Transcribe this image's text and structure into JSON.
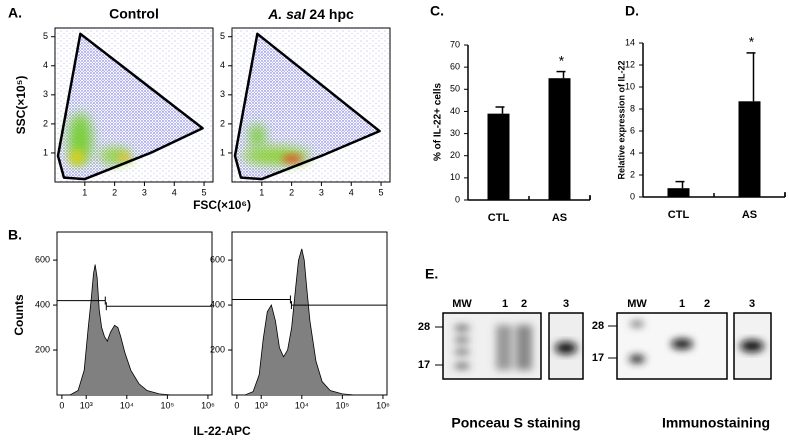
{
  "chart_data": [
    {
      "type": "scatter",
      "panel": "A.",
      "title": "Control",
      "xlabel": "FSC(×10⁶)",
      "ylabel": "SSC(×10⁵)",
      "xlim": [
        0,
        5.3
      ],
      "ylim": [
        0,
        5.3
      ],
      "xticks": [
        1,
        2,
        3,
        4,
        5
      ],
      "yticks": [
        1,
        2,
        3,
        4,
        5
      ],
      "gate": {
        "x": [
          0.85,
          4.95,
          3.2,
          1.0,
          0.3,
          0.1
        ],
        "y": [
          5.1,
          1.85,
          1.0,
          0.1,
          0.15,
          0.9
        ]
      },
      "gate_color": "#000000"
    },
    {
      "type": "scatter",
      "title": "A. sal 24 hpc",
      "xlim": [
        0,
        5.3
      ],
      "ylim": [
        0,
        5.3
      ],
      "xticks": [
        1,
        2,
        3,
        4,
        5
      ],
      "yticks": [
        1,
        2,
        3,
        4,
        5
      ],
      "gate": {
        "x": [
          0.85,
          4.95,
          3.0,
          1.0,
          0.3,
          0.1
        ],
        "y": [
          5.1,
          1.75,
          0.9,
          0.1,
          0.15,
          0.9
        ]
      },
      "gate_color": "#000000"
    },
    {
      "type": "area",
      "panel": "B.",
      "xlabel": "IL-22-APC",
      "ylabel": "Counts",
      "xlim": [
        2.28,
        6.1
      ],
      "ylim": [
        0,
        725
      ],
      "xticks": [
        {
          "value": 2.4,
          "label": "0"
        },
        {
          "value": 3,
          "label": "10³"
        },
        {
          "value": 4,
          "label": "10⁴"
        },
        {
          "value": 5,
          "label": "10⁵"
        },
        {
          "value": 6,
          "label": "10⁶"
        }
      ],
      "yticks": [
        200,
        400,
        600
      ],
      "x": [
        2.6,
        2.8,
        2.95,
        3.05,
        3.12,
        3.18,
        3.22,
        3.27,
        3.32,
        3.38,
        3.45,
        3.52,
        3.6,
        3.7,
        3.78,
        3.85,
        3.95,
        4.1,
        4.3,
        4.5,
        4.8,
        5.1
      ],
      "values": [
        0,
        20,
        110,
        300,
        420,
        540,
        580,
        520,
        380,
        300,
        260,
        240,
        280,
        310,
        300,
        260,
        190,
        110,
        50,
        20,
        5,
        0
      ],
      "color": "#808080",
      "marker_x": 3.47,
      "marker_levels": [
        420,
        395
      ]
    },
    {
      "type": "area",
      "xlim": [
        2.28,
        6.1
      ],
      "ylim": [
        0,
        725
      ],
      "xticks": [
        {
          "value": 2.4,
          "label": "0"
        },
        {
          "value": 3,
          "label": "10³"
        },
        {
          "value": 4,
          "label": "10⁴"
        },
        {
          "value": 5,
          "label": "10⁵"
        },
        {
          "value": 6,
          "label": "10⁶"
        }
      ],
      "yticks": [
        200,
        400,
        600
      ],
      "x": [
        2.6,
        2.8,
        2.95,
        3.05,
        3.15,
        3.25,
        3.35,
        3.45,
        3.55,
        3.65,
        3.75,
        3.85,
        3.92,
        4.0,
        4.06,
        4.12,
        4.2,
        4.35,
        4.5,
        4.7,
        5.0,
        5.3
      ],
      "values": [
        0,
        15,
        90,
        250,
        370,
        400,
        330,
        210,
        170,
        200,
        300,
        480,
        600,
        650,
        600,
        480,
        330,
        150,
        60,
        20,
        5,
        0
      ],
      "color": "#808080",
      "marker_x": 3.72,
      "marker_levels": [
        425,
        400
      ]
    },
    {
      "type": "bar",
      "panel": "C.",
      "ylabel": "% of IL-22+ cells",
      "categories": [
        "CTL",
        "AS"
      ],
      "values": [
        39,
        55
      ],
      "errors": [
        3,
        3
      ],
      "color": "#000000",
      "ylim": [
        0,
        70
      ],
      "yticks": [
        0,
        10,
        20,
        30,
        40,
        50,
        60,
        70
      ],
      "annotation": {
        "text": "*",
        "category": "AS"
      }
    },
    {
      "type": "bar",
      "panel": "D.",
      "ylabel": "Relative expression of IL-22",
      "categories": [
        "CTL",
        "AS"
      ],
      "values": [
        0.8,
        8.7
      ],
      "errors": [
        0.6,
        4.4
      ],
      "color": "#000000",
      "ylim": [
        0,
        14
      ],
      "yticks": [
        0,
        2,
        4,
        6,
        8,
        10,
        12,
        14
      ],
      "annotation": {
        "text": "*",
        "category": "AS"
      }
    }
  ],
  "blots": {
    "panel": "E.",
    "ponceau": {
      "lanes": [
        "MW",
        "1",
        "2",
        "3"
      ],
      "markers": [
        28,
        17
      ],
      "caption": "Ponceau S staining"
    },
    "immuno": {
      "lanes": [
        "MW",
        "1",
        "2",
        "3"
      ],
      "markers": [
        28,
        17
      ],
      "caption": "Immunostaining"
    }
  }
}
